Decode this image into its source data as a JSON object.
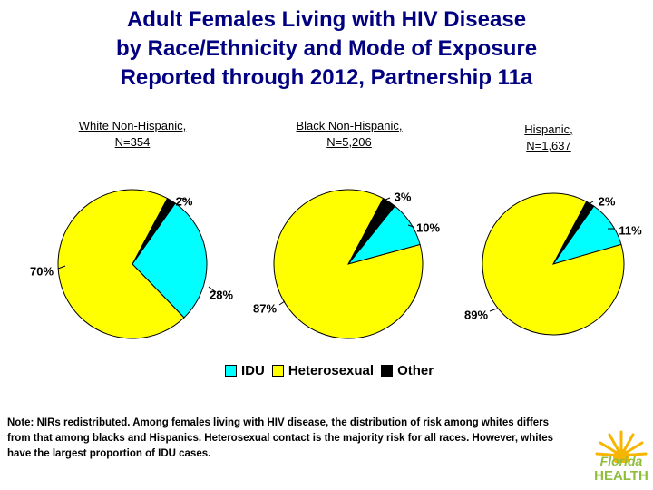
{
  "title": {
    "line1": "Adult Females Living with HIV Disease",
    "line2": "by Race/Ethnicity and Mode of Exposure",
    "line3": "Reported through 2012, Partnership 11a"
  },
  "chart_data": [
    {
      "type": "pie",
      "subtitle": [
        "White Non-Hispanic,",
        "N=354"
      ],
      "slices": [
        {
          "category": "Other",
          "value": 2,
          "label": "2%"
        },
        {
          "category": "IDU",
          "value": 28,
          "label": "28%"
        },
        {
          "category": "Heterosexual",
          "value": 70,
          "label": "70%"
        }
      ]
    },
    {
      "type": "pie",
      "subtitle": [
        "Black Non-Hispanic,",
        "N=5,206"
      ],
      "slices": [
        {
          "category": "Other",
          "value": 3,
          "label": "3%"
        },
        {
          "category": "IDU",
          "value": 10,
          "label": "10%"
        },
        {
          "category": "Heterosexual",
          "value": 87,
          "label": "87%"
        }
      ]
    },
    {
      "type": "pie",
      "subtitle": [
        "Hispanic,",
        "N=1,637"
      ],
      "slices": [
        {
          "category": "Other",
          "value": 2,
          "label": "2%"
        },
        {
          "category": "IDU",
          "value": 11,
          "label": "11%"
        },
        {
          "category": "Heterosexual",
          "value": 89,
          "label": "89%"
        }
      ]
    }
  ],
  "colors": {
    "IDU": "#00ffff",
    "Heterosexual": "#ffff00",
    "Other": "#000000",
    "title": "#000080"
  },
  "legend": [
    {
      "key": "IDU",
      "label": "IDU"
    },
    {
      "key": "Heterosexual",
      "label": "Heterosexual"
    },
    {
      "key": "Other",
      "label": "Other"
    }
  ],
  "note": "Note: NIRs redistributed.   Among females living with HIV disease, the distribution of risk among whites differs from that among blacks and Hispanics.  Heterosexual contact is the majority risk for all races. However, whites have the largest proportion of IDU cases.",
  "logo": {
    "line1": "Florida",
    "line2": "HEALTH"
  }
}
